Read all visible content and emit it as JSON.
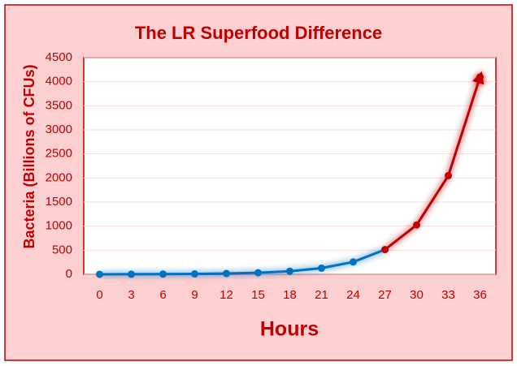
{
  "chart_data": {
    "type": "line",
    "title": "The LR Superfood Difference",
    "x_label": "Hours",
    "y_label": "Bacteria (Billions of CFUs)",
    "x": [
      0,
      3,
      6,
      9,
      12,
      15,
      18,
      21,
      24,
      27,
      30,
      33,
      36
    ],
    "series": [
      {
        "color": "#0070c0",
        "values": [
          1,
          2,
          4,
          8,
          16,
          32,
          64,
          128,
          256,
          512,
          null,
          null,
          null
        ]
      },
      {
        "color": "#c00000",
        "values": [
          null,
          null,
          null,
          null,
          null,
          null,
          null,
          null,
          null,
          512,
          1024,
          2048,
          4096
        ]
      }
    ],
    "xlim": [
      -1.5,
      37.5
    ],
    "xticks": [
      0,
      3,
      6,
      9,
      12,
      15,
      18,
      21,
      24,
      27,
      30,
      33,
      36
    ],
    "ylim": [
      0,
      4500
    ],
    "yticks": [
      0,
      500,
      1000,
      1500,
      2000,
      2500,
      3000,
      3500,
      4000,
      4500
    ],
    "grid": true
  }
}
